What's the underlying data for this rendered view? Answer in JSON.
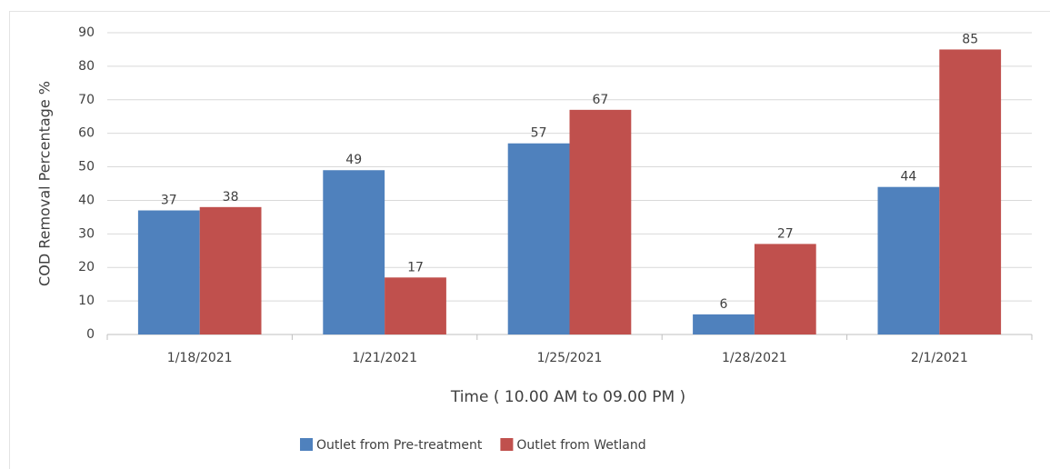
{
  "chart_data": {
    "type": "bar",
    "categories": [
      "1/18/2021",
      "1/21/2021",
      "1/25/2021",
      "1/28/2021",
      "2/1/2021"
    ],
    "series": [
      {
        "name": "Outlet from Pre-treatment",
        "color": "#4f81bd",
        "values": [
          37,
          49,
          57,
          6,
          44
        ]
      },
      {
        "name": "Outlet from Wetland",
        "color": "#c0504d",
        "values": [
          38,
          17,
          67,
          27,
          85
        ]
      }
    ],
    "x_label": "Time ( 10.00 AM to 09.00 PM )",
    "y_label": "COD Removal Percentage %",
    "ylim": [
      0,
      90
    ],
    "yticks": [
      0,
      10,
      20,
      30,
      40,
      50,
      60,
      70,
      80,
      90
    ],
    "grid": true,
    "legend": "bottom"
  }
}
